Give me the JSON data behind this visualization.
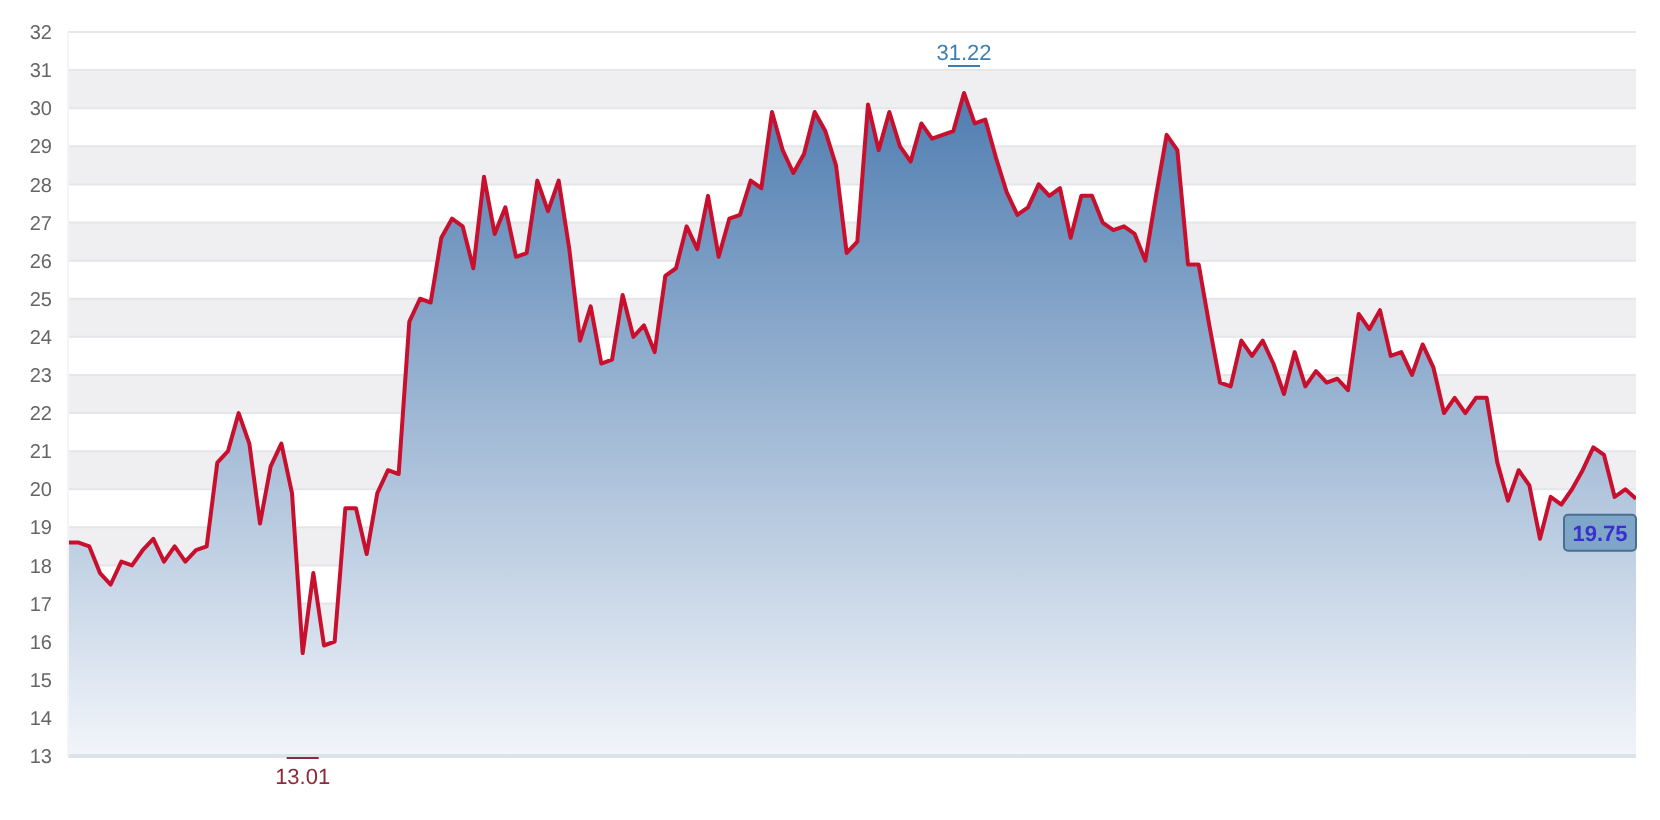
{
  "chart_data": {
    "type": "area",
    "categories": [
      null,
      null,
      null,
      null,
      null,
      null,
      null,
      null,
      null,
      null,
      null,
      null,
      null,
      null,
      null,
      null,
      null,
      null,
      null,
      null,
      null,
      null,
      null,
      null,
      null,
      null,
      null,
      null,
      null,
      null,
      null,
      null,
      null,
      null,
      null,
      null,
      null,
      null,
      null,
      null,
      null,
      null,
      null,
      null,
      null,
      null,
      null,
      null,
      null,
      null,
      null,
      null,
      null,
      null,
      null,
      null,
      null,
      null,
      null,
      null,
      null,
      null,
      null,
      null,
      null,
      null,
      null,
      null,
      null,
      null,
      null,
      null,
      null,
      null,
      null,
      null,
      null,
      null,
      null,
      null,
      null,
      null,
      null,
      null,
      null,
      null,
      null,
      null,
      null,
      null,
      null,
      null,
      null,
      null,
      null,
      null,
      null,
      null,
      null,
      null,
      null,
      null,
      null,
      null,
      null,
      null,
      null,
      null,
      null,
      null,
      null,
      null,
      null,
      null,
      null,
      null,
      null,
      null,
      null,
      null,
      null,
      null,
      null,
      null,
      null,
      null,
      null,
      null,
      null,
      null,
      null,
      null,
      null,
      null,
      null,
      null,
      null,
      null,
      null,
      null,
      null,
      null,
      null,
      null,
      null,
      null,
      null,
      null
    ],
    "series": [
      {
        "color": "#c8102e",
        "values": [
          18.6,
          18.6,
          18.5,
          17.8,
          17.5,
          18.1,
          18.0,
          18.4,
          18.7,
          18.1,
          18.5,
          18.1,
          18.4,
          18.5,
          20.7,
          21.0,
          22.0,
          21.2,
          19.1,
          20.6,
          21.2,
          19.9,
          15.7,
          17.8,
          15.9,
          16.0,
          19.5,
          19.5,
          18.3,
          19.9,
          20.5,
          20.4,
          24.4,
          25.0,
          24.9,
          26.6,
          27.1,
          26.9,
          25.8,
          28.2,
          26.7,
          27.4,
          26.1,
          26.2,
          28.1,
          27.3,
          28.1,
          26.3,
          23.9,
          24.8,
          23.3,
          23.4,
          25.1,
          24.0,
          24.3,
          23.6,
          25.6,
          25.8,
          26.9,
          26.3,
          27.7,
          26.1,
          27.1,
          27.2,
          28.1,
          27.9,
          29.9,
          28.9,
          28.3,
          28.8,
          29.9,
          29.4,
          28.5,
          26.2,
          26.5,
          30.1,
          28.9,
          29.9,
          29.0,
          28.6,
          29.6,
          29.2,
          29.3,
          29.4,
          30.4,
          29.6,
          29.7,
          28.7,
          27.8,
          27.2,
          27.4,
          28.0,
          27.7,
          27.9,
          26.6,
          27.7,
          27.7,
          27.0,
          26.8,
          26.9,
          26.7,
          26.0,
          27.7,
          29.3,
          28.9,
          25.9,
          25.9,
          24.3,
          22.8,
          22.7,
          23.9,
          23.5,
          23.9,
          23.3,
          22.5,
          23.6,
          22.7,
          23.1,
          22.8,
          22.9,
          22.6,
          24.6,
          24.2,
          24.7,
          23.5,
          23.6,
          23.0,
          23.8,
          23.2,
          22.0,
          22.4,
          22.0,
          22.4,
          22.4,
          20.7,
          19.7,
          20.5,
          20.1,
          18.7,
          19.8,
          19.6,
          20.0,
          20.5,
          21.1,
          20.9,
          19.8,
          20.0,
          19.75
        ]
      }
    ],
    "ylim": [
      13,
      32
    ],
    "yticks": [
      13,
      14,
      15,
      16,
      17,
      18,
      19,
      20,
      21,
      22,
      23,
      24,
      25,
      26,
      27,
      28,
      29,
      30,
      31,
      32
    ],
    "grid": "y",
    "tick_labels": "y",
    "annotations": [
      "31.22",
      "13.01",
      "19.75"
    ]
  }
}
